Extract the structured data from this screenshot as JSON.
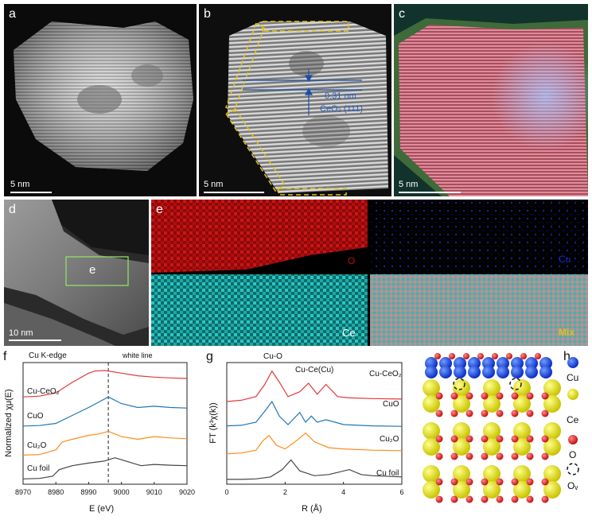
{
  "panels": {
    "a": {
      "label": "a",
      "scale": "5 nm"
    },
    "b": {
      "label": "b",
      "scale": "5 nm",
      "spacing": "0.31 nm",
      "plane": "CeO₂ (111)"
    },
    "c": {
      "label": "c",
      "scale": "5 nm"
    },
    "d": {
      "label": "d",
      "scale": "10 nm",
      "box_label": "e"
    },
    "e": {
      "label": "e",
      "maps": [
        "O",
        "Cu",
        "Ce",
        "Mix"
      ]
    }
  },
  "plot_f": {
    "label": "f",
    "edge_label": "Cu K-edge",
    "annotation": "white line",
    "xlabel": "E (eV)",
    "ylabel": "Normalized χμ(E)",
    "xticks": [
      "8970",
      "8980",
      "8990",
      "9000",
      "9010",
      "9020"
    ],
    "legend": [
      "Cu-CeO₂",
      "CuO",
      "Cu₂O",
      "Cu foil"
    ]
  },
  "plot_g": {
    "label": "g",
    "xlabel": "R (Å)",
    "ylabel": "FT (k³χ(k))",
    "xticks": [
      "0",
      "2",
      "4",
      "6"
    ],
    "peak_labels": [
      "Cu-O",
      "Cu-Ce(Cu)"
    ],
    "legend": [
      "Cu-CeO₂",
      "CuO",
      "Cu₂O",
      "Cu foil"
    ]
  },
  "panel_h": {
    "label": "h",
    "legend": [
      "Cu",
      "Ce",
      "O",
      "Oᵥ"
    ]
  },
  "colors": {
    "red": "#e03a3a",
    "blue": "#1f77b4",
    "orange": "#ff8c1a",
    "gray": "#444444",
    "yellow": "#d4a017"
  },
  "chart_data": [
    {
      "type": "line",
      "title": "",
      "xlabel": "E (eV)",
      "ylabel": "Normalized χμ(E)",
      "xlim": [
        8970,
        9020
      ],
      "series": [
        {
          "name": "Cu-CeO₂",
          "x": [
            8970,
            8975,
            8980,
            8985,
            8990,
            8992,
            8995,
            9000,
            9005,
            9010,
            9015,
            9020
          ],
          "y": [
            3.3,
            3.33,
            3.45,
            3.85,
            4.2,
            4.28,
            4.3,
            4.2,
            4.1,
            4.05,
            4.02,
            4.0
          ]
        },
        {
          "name": "CuO",
          "x": [
            8970,
            8975,
            8980,
            8985,
            8990,
            8993,
            8996,
            9000,
            9005,
            9010,
            9015,
            9020
          ],
          "y": [
            2.2,
            2.22,
            2.3,
            2.6,
            2.9,
            3.1,
            3.3,
            3.05,
            2.9,
            2.95,
            2.9,
            2.88
          ]
        },
        {
          "name": "Cu₂O",
          "x": [
            8970,
            8975,
            8980,
            8982,
            8985,
            8990,
            8993,
            8996,
            9000,
            9005,
            9010,
            9015,
            9020
          ],
          "y": [
            1.1,
            1.12,
            1.3,
            1.6,
            1.7,
            1.85,
            1.9,
            2.0,
            1.8,
            1.7,
            1.8,
            1.75,
            1.72
          ]
        },
        {
          "name": "Cu foil",
          "x": [
            8970,
            8975,
            8979,
            8981,
            8985,
            8990,
            8995,
            8998,
            9002,
            9006,
            9010,
            9015,
            9020
          ],
          "y": [
            0.2,
            0.22,
            0.3,
            0.55,
            0.7,
            0.8,
            0.88,
            1.0,
            0.85,
            0.7,
            0.75,
            0.72,
            0.7
          ]
        }
      ]
    },
    {
      "type": "line",
      "title": "",
      "xlabel": "R (Å)",
      "ylabel": "FT (k³χ(k))",
      "xlim": [
        0,
        6
      ],
      "series": [
        {
          "name": "Cu-CeO₂",
          "x": [
            0,
            0.5,
            1.0,
            1.3,
            1.55,
            1.8,
            2.1,
            2.5,
            2.8,
            3.1,
            3.4,
            3.8,
            4.2,
            5,
            6
          ],
          "y": [
            3.4,
            3.45,
            3.6,
            4.1,
            4.65,
            4.2,
            3.6,
            3.8,
            4.15,
            3.7,
            4.1,
            3.6,
            3.55,
            3.52,
            3.5
          ]
        },
        {
          "name": "CuO",
          "x": [
            0,
            0.5,
            1.0,
            1.3,
            1.55,
            1.8,
            2.1,
            2.5,
            2.7,
            2.9,
            3.1,
            3.4,
            4,
            5,
            6
          ],
          "y": [
            2.4,
            2.42,
            2.55,
            3.0,
            3.4,
            2.8,
            2.45,
            2.95,
            2.55,
            2.8,
            2.55,
            2.65,
            2.45,
            2.4,
            2.38
          ]
        },
        {
          "name": "Cu₂O",
          "x": [
            0,
            0.5,
            1.0,
            1.25,
            1.45,
            1.7,
            2.0,
            2.4,
            2.7,
            3.0,
            3.5,
            4,
            5,
            6
          ],
          "y": [
            1.25,
            1.28,
            1.4,
            1.8,
            2.0,
            1.6,
            1.45,
            1.8,
            2.1,
            1.75,
            1.5,
            1.45,
            1.4,
            1.38
          ]
        },
        {
          "name": "Cu foil",
          "x": [
            0,
            0.5,
            1.0,
            1.5,
            1.9,
            2.2,
            2.5,
            3.0,
            3.5,
            4.2,
            4.6,
            5,
            6
          ],
          "y": [
            0.2,
            0.2,
            0.22,
            0.3,
            0.6,
            1.0,
            0.55,
            0.35,
            0.4,
            0.6,
            0.4,
            0.35,
            0.3
          ]
        }
      ]
    }
  ]
}
